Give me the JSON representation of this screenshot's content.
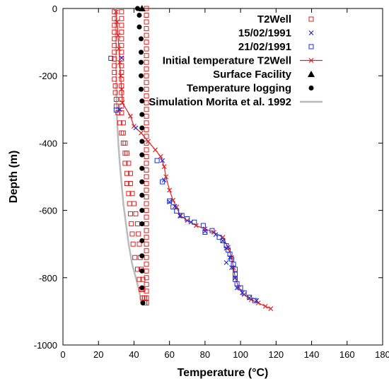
{
  "chart_data": {
    "type": "scatter",
    "xlabel": "Temperature (°C)",
    "ylabel": "Depth (m)",
    "xlim": [
      0,
      180
    ],
    "ylim": [
      -1000,
      0
    ],
    "x_ticks": [
      0,
      20,
      40,
      60,
      80,
      100,
      120,
      140,
      160,
      180
    ],
    "y_ticks": [
      0,
      -200,
      -400,
      -600,
      -800,
      -1000
    ],
    "grid": false,
    "legend_position": "top-right",
    "series": [
      {
        "name": "Simulation Morita et al. 1992",
        "kind": "line",
        "color": "#bbbbbb",
        "points": [
          [
            44,
            -875
          ],
          [
            43,
            -840
          ],
          [
            41,
            -800
          ],
          [
            39,
            -760
          ],
          [
            37,
            -700
          ],
          [
            35.5,
            -640
          ],
          [
            34,
            -580
          ],
          [
            33,
            -520
          ],
          [
            32,
            -460
          ],
          [
            31.2,
            -400
          ],
          [
            30.6,
            -340
          ],
          [
            30.2,
            -280
          ],
          [
            30,
            -200
          ],
          [
            29.8,
            -120
          ],
          [
            29.6,
            -40
          ],
          [
            29.6,
            0
          ]
        ]
      },
      {
        "name": "Initial temperature T2Well",
        "kind": "line-marker",
        "marker": "x",
        "color": "#e02020",
        "points": [
          [
            30,
            -10
          ],
          [
            30.5,
            -40
          ],
          [
            31,
            -80
          ],
          [
            31.5,
            -120
          ],
          [
            32,
            -160
          ],
          [
            32.5,
            -200
          ],
          [
            33,
            -240
          ],
          [
            33.5,
            -280
          ],
          [
            38,
            -320
          ],
          [
            40,
            -350
          ],
          [
            44,
            -370
          ],
          [
            48,
            -395
          ],
          [
            52,
            -420
          ],
          [
            55,
            -440
          ],
          [
            57,
            -470
          ],
          [
            58,
            -500
          ],
          [
            60,
            -540
          ],
          [
            62,
            -570
          ],
          [
            64,
            -590
          ],
          [
            66,
            -615
          ],
          [
            70,
            -630
          ],
          [
            75,
            -645
          ],
          [
            80,
            -655
          ],
          [
            85,
            -665
          ],
          [
            90,
            -680
          ],
          [
            93,
            -710
          ],
          [
            95,
            -740
          ],
          [
            96,
            -770
          ],
          [
            97,
            -800
          ],
          [
            99,
            -830
          ],
          [
            102,
            -850
          ],
          [
            106,
            -865
          ],
          [
            110,
            -875
          ],
          [
            114,
            -885
          ],
          [
            117,
            -892
          ]
        ]
      },
      {
        "name": "T2Well",
        "kind": "marker",
        "marker": "square-open",
        "color": "#e02020",
        "points": [
          [
            29,
            -10
          ],
          [
            29,
            -30
          ],
          [
            29,
            -50
          ],
          [
            29,
            -70
          ],
          [
            29,
            -90
          ],
          [
            29,
            -110
          ],
          [
            29,
            -130
          ],
          [
            29,
            -150
          ],
          [
            29,
            -170
          ],
          [
            29,
            -190
          ],
          [
            29,
            -210
          ],
          [
            29.5,
            -230
          ],
          [
            29.5,
            -250
          ],
          [
            30,
            -270
          ],
          [
            30,
            -290
          ],
          [
            31,
            -310
          ],
          [
            32,
            -340
          ],
          [
            33,
            -370
          ],
          [
            34,
            -400
          ],
          [
            35,
            -430
          ],
          [
            35,
            -460
          ],
          [
            36,
            -490
          ],
          [
            36,
            -520
          ],
          [
            37,
            -550
          ],
          [
            37.5,
            -580
          ],
          [
            38,
            -610
          ],
          [
            38.5,
            -640
          ],
          [
            39,
            -670
          ],
          [
            39.5,
            -700
          ],
          [
            40.5,
            -740
          ],
          [
            42,
            -775
          ],
          [
            43,
            -805
          ],
          [
            44,
            -835
          ],
          [
            45,
            -860
          ],
          [
            46,
            -875
          ],
          [
            33,
            -10
          ],
          [
            33,
            -30
          ],
          [
            33,
            -50
          ],
          [
            33,
            -70
          ],
          [
            33,
            -90
          ],
          [
            33,
            -110
          ],
          [
            33,
            -130
          ],
          [
            33,
            -150
          ],
          [
            33,
            -170
          ],
          [
            33,
            -190
          ],
          [
            33,
            -210
          ],
          [
            33,
            -230
          ],
          [
            33,
            -250
          ],
          [
            33,
            -270
          ],
          [
            33,
            -290
          ],
          [
            33,
            -310
          ],
          [
            34,
            -340
          ],
          [
            34,
            -370
          ],
          [
            35,
            -400
          ],
          [
            36,
            -430
          ],
          [
            37,
            -460
          ],
          [
            38,
            -490
          ],
          [
            38,
            -520
          ],
          [
            39,
            -550
          ],
          [
            40,
            -580
          ],
          [
            41,
            -610
          ],
          [
            42,
            -640
          ],
          [
            42.5,
            -670
          ],
          [
            43,
            -700
          ],
          [
            43.5,
            -740
          ],
          [
            44,
            -775
          ],
          [
            45,
            -805
          ],
          [
            45,
            -835
          ],
          [
            46,
            -860
          ],
          [
            46,
            -875
          ],
          [
            47,
            0
          ],
          [
            47,
            -20
          ],
          [
            47,
            -40
          ],
          [
            47,
            -60
          ],
          [
            47,
            -80
          ],
          [
            47,
            -100
          ],
          [
            47,
            -120
          ],
          [
            47,
            -140
          ],
          [
            47,
            -160
          ],
          [
            47,
            -180
          ],
          [
            47,
            -200
          ],
          [
            47,
            -220
          ],
          [
            47,
            -240
          ],
          [
            47,
            -260
          ],
          [
            47,
            -280
          ],
          [
            47,
            -300
          ],
          [
            47,
            -320
          ],
          [
            47,
            -340
          ],
          [
            47,
            -360
          ],
          [
            47,
            -380
          ],
          [
            47,
            -400
          ],
          [
            47,
            -420
          ],
          [
            47,
            -440
          ],
          [
            47,
            -460
          ],
          [
            47,
            -480
          ],
          [
            47,
            -500
          ],
          [
            47,
            -520
          ],
          [
            47,
            -540
          ],
          [
            47,
            -560
          ],
          [
            47,
            -580
          ],
          [
            47,
            -600
          ],
          [
            47,
            -620
          ],
          [
            47,
            -640
          ],
          [
            47,
            -660
          ],
          [
            47,
            -680
          ],
          [
            47,
            -700
          ],
          [
            47,
            -720
          ],
          [
            47,
            -740
          ],
          [
            47,
            -760
          ],
          [
            47,
            -780
          ],
          [
            47,
            -800
          ],
          [
            47,
            -820
          ],
          [
            47,
            -840
          ],
          [
            47,
            -860
          ],
          [
            47,
            -875
          ]
        ]
      },
      {
        "name": "15/02/1991",
        "kind": "marker",
        "marker": "x",
        "color": "#1a2fd6",
        "points": [
          [
            33,
            -147
          ],
          [
            32,
            -300
          ],
          [
            41,
            -355
          ],
          [
            56,
            -452
          ],
          [
            57,
            -510
          ],
          [
            60,
            -575
          ],
          [
            63,
            -588
          ],
          [
            66,
            -617
          ],
          [
            72,
            -635
          ],
          [
            80,
            -662
          ],
          [
            86,
            -672
          ],
          [
            90,
            -690
          ],
          [
            92,
            -712
          ],
          [
            94,
            -740
          ],
          [
            92,
            -755
          ],
          [
            95,
            -770
          ],
          [
            97,
            -800
          ],
          [
            98,
            -830
          ],
          [
            101,
            -845
          ],
          [
            105,
            -860
          ],
          [
            109,
            -868
          ]
        ]
      },
      {
        "name": "21/02/1991",
        "kind": "marker",
        "marker": "square-open",
        "color": "#1a2fd6",
        "points": [
          [
            27,
            -148
          ],
          [
            30,
            -302
          ],
          [
            53,
            -452
          ],
          [
            56,
            -515
          ],
          [
            60,
            -572
          ],
          [
            62,
            -590
          ],
          [
            64,
            -602
          ],
          [
            67,
            -615
          ],
          [
            70,
            -625
          ],
          [
            74,
            -635
          ],
          [
            79,
            -645
          ],
          [
            80,
            -665
          ],
          [
            84,
            -660
          ],
          [
            88,
            -680
          ],
          [
            90,
            -690
          ],
          [
            92,
            -705
          ],
          [
            93,
            -718
          ],
          [
            94,
            -730
          ],
          [
            95,
            -745
          ],
          [
            96,
            -760
          ],
          [
            97,
            -775
          ],
          [
            97,
            -790
          ],
          [
            97,
            -805
          ],
          [
            98,
            -818
          ],
          [
            100,
            -830
          ],
          [
            102,
            -845
          ],
          [
            105,
            -858
          ],
          [
            108,
            -868
          ]
        ]
      },
      {
        "name": "Surface Facility",
        "kind": "marker",
        "marker": "triangle",
        "color": "#000000",
        "points": [
          [
            44.5,
            0
          ]
        ]
      },
      {
        "name": "Temperature logging",
        "kind": "marker",
        "marker": "circle",
        "color": "#000000",
        "points": [
          [
            42,
            0
          ],
          [
            43,
            -20
          ],
          [
            43,
            -55
          ],
          [
            44,
            -90
          ],
          [
            44,
            -130
          ],
          [
            44,
            -160
          ],
          [
            44,
            -200
          ],
          [
            44,
            -240
          ],
          [
            44.5,
            -275
          ],
          [
            44.5,
            -315
          ],
          [
            44.5,
            -355
          ],
          [
            44.5,
            -395
          ],
          [
            44.5,
            -435
          ],
          [
            44.5,
            -475
          ],
          [
            44.5,
            -515
          ],
          [
            44.5,
            -555
          ],
          [
            44.5,
            -600
          ],
          [
            44.5,
            -640
          ],
          [
            44.5,
            -690
          ],
          [
            44.5,
            -735
          ],
          [
            44.5,
            -780
          ],
          [
            44.5,
            -830
          ],
          [
            45,
            -875
          ]
        ]
      }
    ],
    "legend_order": [
      "T2Well",
      "15/02/1991",
      "21/02/1991",
      "Initial temperature T2Well",
      "Surface Facility",
      "Temperature logging",
      "Simulation Morita et al. 1992"
    ]
  }
}
